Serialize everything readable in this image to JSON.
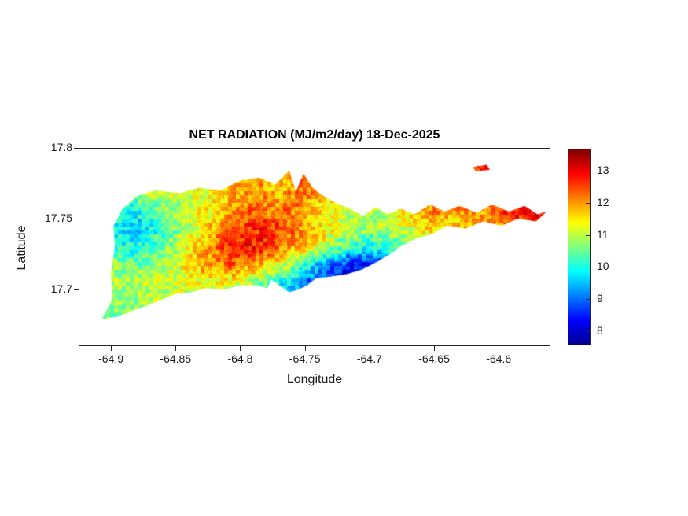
{
  "figure": {
    "background": "#ffffff",
    "axes_color": "#262626",
    "text_color": "#1a1a1a"
  },
  "chart_data": {
    "type": "heatmap",
    "title": "NET RADIATION (MJ/m2/day) 18-Dec-2025",
    "xlabel": "Longitude",
    "ylabel": "Latitude",
    "xlim": [
      -64.925,
      -64.56
    ],
    "ylim": [
      17.66,
      17.8
    ],
    "x_ticks": [
      -64.9,
      -64.85,
      -64.8,
      -64.75,
      -64.7,
      -64.65,
      -64.6
    ],
    "x_tick_labels": [
      "-64.9",
      "-64.85",
      "-64.8",
      "-64.75",
      "-64.7",
      "-64.65",
      "-64.6"
    ],
    "y_ticks": [
      17.7,
      17.75,
      17.8
    ],
    "y_tick_labels": [
      "17.7",
      "17.75",
      "17.8"
    ],
    "grid_on": false,
    "legend": "none",
    "colorbar": {
      "location": "right",
      "min": 7.6,
      "max": 13.7,
      "ticks": [
        8,
        9,
        10,
        11,
        12,
        13
      ],
      "tick_labels": [
        "8",
        "9",
        "10",
        "11",
        "12",
        "13"
      ],
      "colormap": "jet",
      "stops": [
        {
          "pos": 0.0,
          "color": "#00008F"
        },
        {
          "pos": 0.125,
          "color": "#0000FF"
        },
        {
          "pos": 0.375,
          "color": "#00FFFF"
        },
        {
          "pos": 0.625,
          "color": "#FFFF00"
        },
        {
          "pos": 0.875,
          "color": "#FF0000"
        },
        {
          "pos": 1.0,
          "color": "#7F0000"
        }
      ]
    },
    "grid": {
      "lon0": -64.91,
      "dlon": 0.013,
      "lat0": 17.792,
      "dlat": 0.0125,
      "values": [
        [
          11.2,
          11.2,
          11.3,
          11.3,
          11.2,
          11.3,
          11.4,
          11.5,
          11.6,
          11.8,
          11.6,
          11.5,
          12.0,
          11.8,
          11.6,
          11.5,
          11.4,
          11.5,
          11.6,
          11.7,
          11.8,
          12.0,
          12.8,
          13.0,
          12.9,
          12.8,
          13.0,
          13.2
        ],
        [
          11.0,
          11.1,
          11.2,
          11.4,
          11.3,
          11.2,
          11.3,
          11.5,
          11.7,
          12.0,
          11.8,
          11.6,
          12.2,
          12.0,
          11.7,
          11.5,
          11.3,
          11.4,
          11.6,
          11.8,
          12.0,
          12.2,
          12.4,
          12.5,
          12.7,
          12.9,
          13.1,
          13.3
        ],
        [
          10.6,
          10.5,
          10.6,
          10.9,
          11.0,
          11.1,
          11.2,
          11.4,
          11.8,
          12.1,
          12.0,
          11.8,
          12.3,
          11.9,
          11.5,
          11.2,
          11.0,
          11.2,
          11.5,
          11.9,
          12.3,
          12.1,
          12.5,
          12.2,
          12.8,
          12.5,
          13.0,
          13.2
        ],
        [
          10.3,
          10.0,
          9.9,
          10.2,
          10.6,
          11.0,
          11.3,
          11.6,
          12.0,
          12.3,
          12.1,
          12.4,
          12.0,
          11.6,
          11.3,
          11.0,
          10.9,
          11.1,
          11.4,
          11.8,
          12.1,
          11.9,
          12.3,
          12.0,
          12.5,
          12.8,
          13.1,
          13.3
        ],
        [
          10.5,
          9.9,
          9.7,
          9.9,
          10.3,
          10.8,
          11.4,
          11.9,
          12.4,
          12.6,
          12.8,
          12.5,
          12.2,
          11.8,
          11.4,
          11.0,
          10.7,
          10.8,
          11.0,
          11.3,
          11.6,
          11.4,
          11.8,
          11.6,
          12.0,
          12.3,
          12.6,
          12.9
        ],
        [
          10.8,
          10.2,
          10.0,
          10.2,
          10.6,
          11.2,
          11.8,
          12.3,
          12.8,
          12.9,
          12.6,
          12.2,
          11.8,
          11.3,
          10.7,
          10.2,
          9.9,
          10.1,
          10.4,
          10.8,
          11.2,
          11.0,
          11.4,
          11.2,
          11.6,
          11.9,
          12.2,
          12.4
        ],
        [
          11.0,
          10.7,
          10.5,
          10.7,
          11.0,
          11.4,
          11.8,
          12.1,
          12.3,
          12.0,
          11.6,
          11.1,
          10.4,
          9.6,
          8.9,
          8.5,
          8.3,
          8.8,
          9.5,
          10.2,
          10.8,
          10.6,
          11.0,
          10.9,
          11.2,
          11.4,
          11.6,
          11.8
        ],
        [
          11.1,
          11.0,
          10.9,
          11.0,
          11.1,
          11.2,
          11.3,
          11.4,
          11.2,
          10.9,
          10.5,
          9.9,
          9.2,
          8.6,
          8.2,
          8.0,
          8.1,
          8.5,
          9.2,
          9.9,
          10.5,
          10.6,
          10.8,
          10.9,
          11.0,
          11.2,
          11.3,
          11.4
        ],
        [
          10.9,
          10.8,
          10.8,
          10.9,
          11.0,
          11.0,
          11.1,
          11.1,
          11.0,
          10.7,
          10.3,
          9.8,
          9.2,
          8.8,
          8.5,
          8.4,
          8.6,
          9.0,
          9.6,
          10.2,
          10.6,
          10.7,
          10.8,
          10.9,
          11.0,
          11.1,
          11.2,
          11.2
        ],
        [
          10.6,
          10.6,
          10.7,
          10.8,
          10.9,
          10.9,
          11.0,
          11.0,
          10.9,
          10.8,
          10.6,
          10.3,
          10.0,
          9.7,
          9.5,
          9.5,
          9.7,
          10.0,
          10.3,
          10.5,
          10.7,
          10.8,
          10.8,
          10.9,
          10.9,
          11.0,
          11.0,
          11.0
        ],
        [
          10.5,
          10.5,
          10.5,
          10.5,
          10.5,
          10.5,
          10.5,
          10.5,
          10.5,
          10.5,
          10.5,
          10.5,
          10.5,
          10.5,
          10.5,
          10.5,
          10.5,
          10.5,
          10.5,
          10.5,
          10.5,
          10.5,
          10.5,
          10.5,
          10.5,
          10.5,
          10.5,
          10.5
        ]
      ]
    },
    "island_outline": [
      [
        -64.907,
        17.679
      ],
      [
        -64.899,
        17.693
      ],
      [
        -64.9,
        17.712
      ],
      [
        -64.897,
        17.73
      ],
      [
        -64.898,
        17.745
      ],
      [
        -64.891,
        17.757
      ],
      [
        -64.88,
        17.766
      ],
      [
        -64.866,
        17.77
      ],
      [
        -64.846,
        17.768
      ],
      [
        -64.832,
        17.772
      ],
      [
        -64.815,
        17.77
      ],
      [
        -64.8,
        17.777
      ],
      [
        -64.785,
        17.779
      ],
      [
        -64.773,
        17.774
      ],
      [
        -64.762,
        17.784
      ],
      [
        -64.757,
        17.769
      ],
      [
        -64.751,
        17.782
      ],
      [
        -64.744,
        17.772
      ],
      [
        -64.737,
        17.767
      ],
      [
        -64.728,
        17.762
      ],
      [
        -64.715,
        17.757
      ],
      [
        -64.705,
        17.752
      ],
      [
        -64.695,
        17.758
      ],
      [
        -64.686,
        17.753
      ],
      [
        -64.676,
        17.757
      ],
      [
        -64.665,
        17.753
      ],
      [
        -64.653,
        17.76
      ],
      [
        -64.642,
        17.755
      ],
      [
        -64.63,
        17.759
      ],
      [
        -64.617,
        17.754
      ],
      [
        -64.605,
        17.76
      ],
      [
        -64.592,
        17.755
      ],
      [
        -64.58,
        17.759
      ],
      [
        -64.57,
        17.753
      ],
      [
        -64.563,
        17.755
      ],
      [
        -64.571,
        17.748
      ],
      [
        -64.585,
        17.75
      ],
      [
        -64.598,
        17.745
      ],
      [
        -64.612,
        17.748
      ],
      [
        -64.626,
        17.743
      ],
      [
        -64.64,
        17.745
      ],
      [
        -64.652,
        17.739
      ],
      [
        -64.664,
        17.736
      ],
      [
        -64.675,
        17.731
      ],
      [
        -64.684,
        17.725
      ],
      [
        -64.695,
        17.719
      ],
      [
        -64.706,
        17.714
      ],
      [
        -64.717,
        17.711
      ],
      [
        -64.73,
        17.709
      ],
      [
        -64.741,
        17.708
      ],
      [
        -64.748,
        17.703
      ],
      [
        -64.755,
        17.7
      ],
      [
        -64.762,
        17.698
      ],
      [
        -64.77,
        17.703
      ],
      [
        -64.776,
        17.707
      ],
      [
        -64.779,
        17.701
      ],
      [
        -64.788,
        17.703
      ],
      [
        -64.8,
        17.703
      ],
      [
        -64.812,
        17.7
      ],
      [
        -64.826,
        17.701
      ],
      [
        -64.838,
        17.698
      ],
      [
        -64.85,
        17.697
      ],
      [
        -64.86,
        17.693
      ],
      [
        -64.871,
        17.689
      ],
      [
        -64.883,
        17.685
      ],
      [
        -64.894,
        17.681
      ]
    ],
    "islets": [
      [
        [
          -64.62,
          17.7865
        ],
        [
          -64.609,
          17.788
        ],
        [
          -64.607,
          17.7845
        ],
        [
          -64.618,
          17.7835
        ]
      ]
    ]
  }
}
